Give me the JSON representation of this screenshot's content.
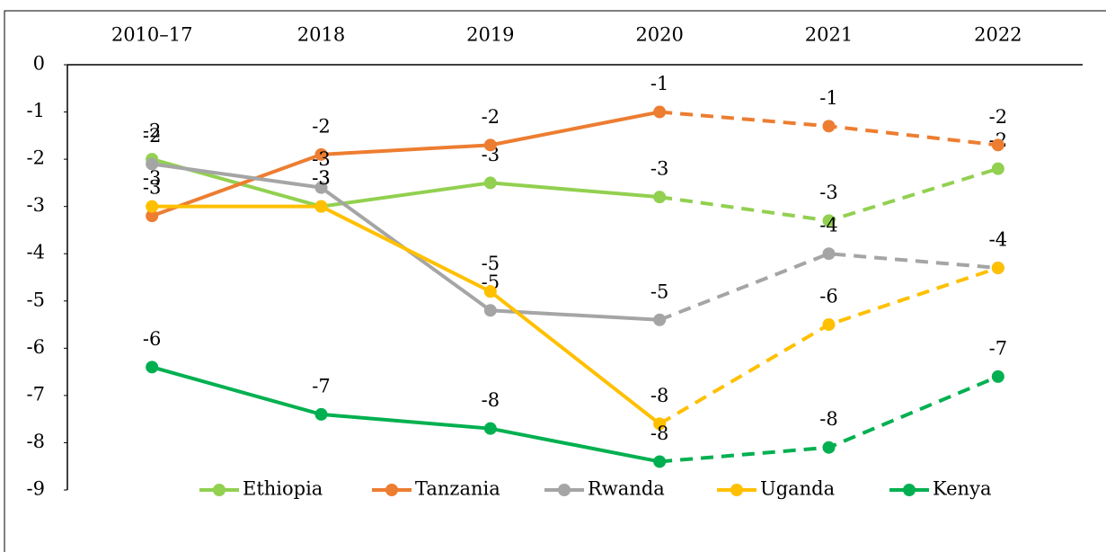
{
  "chart_data": {
    "type": "line",
    "categories": [
      "2010–17",
      "2018",
      "2019",
      "2020",
      "2021",
      "2022"
    ],
    "dashed_from": "2020",
    "ylim": [
      -9,
      0
    ],
    "yticks": [
      0,
      -1,
      -2,
      -3,
      -4,
      -5,
      -6,
      -7,
      -8,
      -9
    ],
    "legend": "lower center",
    "series": [
      {
        "name": "Ethiopia",
        "color": "#92d050",
        "values": [
          -2.0,
          -3.0,
          -2.5,
          -2.8,
          -3.3,
          -2.2
        ],
        "value_labels": [
          "-2",
          "-3",
          "-3",
          "-3",
          "-3",
          "-2"
        ]
      },
      {
        "name": "Tanzania",
        "color": "#ed7d31",
        "values": [
          -3.2,
          -1.9,
          -1.7,
          -1.0,
          -1.3,
          -1.7
        ],
        "value_labels": [
          "-3",
          "-2",
          "-2",
          "-1",
          "-1",
          "-2"
        ]
      },
      {
        "name": "Rwanda",
        "color": "#a5a5a5",
        "values": [
          -2.1,
          -2.6,
          -5.2,
          -5.4,
          -4.0,
          -4.3
        ],
        "value_labels": [
          "-2",
          "-3",
          "-5",
          "-5",
          "-4",
          "-4"
        ]
      },
      {
        "name": "Uganda",
        "color": "#ffc000",
        "values": [
          -3.0,
          -3.0,
          -4.8,
          -7.6,
          -5.5,
          -4.3
        ],
        "value_labels": [
          "-3",
          "-3",
          "-5",
          "-8",
          "-6",
          "-4"
        ]
      },
      {
        "name": "Kenya",
        "color": "#00b050",
        "values": [
          -6.4,
          -7.4,
          -7.7,
          -8.4,
          -8.1,
          -6.6
        ],
        "value_labels": [
          "-6",
          "-7",
          "-8",
          "-8",
          "-8",
          "-7"
        ]
      }
    ]
  }
}
